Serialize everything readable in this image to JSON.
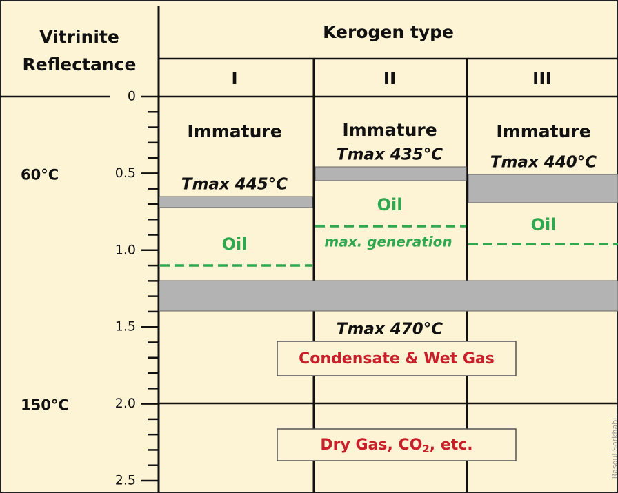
{
  "header": {
    "left_title": [
      "Vitrinite",
      "Reflectance"
    ],
    "right_title": "Kerogen type",
    "columns": [
      "I",
      "II",
      "III"
    ]
  },
  "axis": {
    "ticks": [
      {
        "value": 0,
        "label": "0"
      },
      {
        "value": 0.5,
        "label": "0.5"
      },
      {
        "value": 1.0,
        "label": "1.0"
      },
      {
        "value": 1.5,
        "label": "1.5"
      },
      {
        "value": 2.0,
        "label": "2.0"
      },
      {
        "value": 2.5,
        "label": "2.5"
      }
    ],
    "temperatures": [
      {
        "value": 0.5,
        "label": "60°C"
      },
      {
        "value": 2.0,
        "label": "150°C"
      }
    ]
  },
  "columns": [
    {
      "immature": "Immature",
      "tmax": "Tmax 445°C",
      "oil": "Oil"
    },
    {
      "immature": "Immature",
      "tmax": "Tmax 435°C",
      "oil": "Oil",
      "note": "max. generation"
    },
    {
      "immature": "Immature",
      "tmax": "Tmax 440°C",
      "oil": "Oil"
    }
  ],
  "tmax_gas": "Tmax 470°C",
  "zones": {
    "wet_gas": "Condensate & Wet Gas",
    "dry_gas": [
      "Dry Gas, CO",
      "2",
      ", etc."
    ]
  },
  "credit": "Rasoul Sorkhabi"
}
